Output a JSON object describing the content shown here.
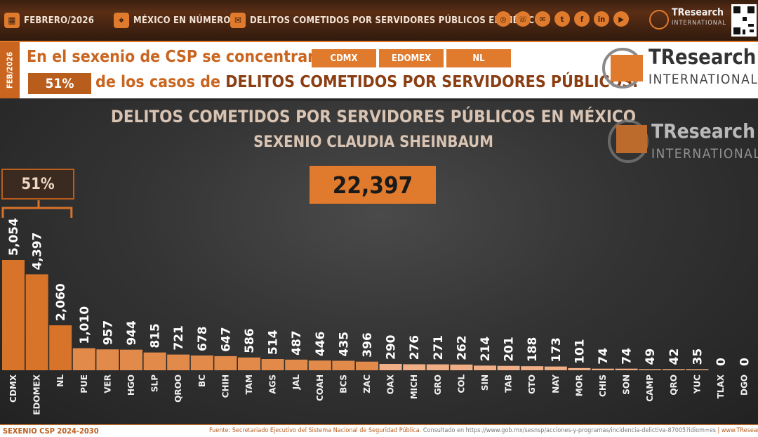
{
  "topbar": {
    "date": "FEBRERO/2026",
    "section": "MÉXICO EN NÚMEROS",
    "topic": "DELITOS COMETIDOS POR SERVIDORES PÚBLICOS EN MÉXICO",
    "social_icons": [
      "web-icon",
      "phone-icon",
      "email-icon",
      "twitter-icon",
      "facebook-icon",
      "linkedin-icon",
      "youtube-icon"
    ],
    "logo_word1": "TResearch",
    "logo_word2": "INTERNATIONAL"
  },
  "headline": {
    "side_date": "FEB/2026",
    "line1": "En el sexenio de CSP se concentran en",
    "chips": [
      "CDMX",
      "EDOMEX",
      "NL"
    ],
    "percent": "51%",
    "line2_pre": "de los casos de",
    "line2_emph": "DELITOS COMETIDOS POR SERVIDORES PÚBLICOS."
  },
  "brand": {
    "name_main": "TResearch",
    "name_sub": "INTERNATIONAL",
    "accent": "#e07a2c",
    "dark_accent": "#b85d1c"
  },
  "chart_data": {
    "type": "bar",
    "title": "DELITOS COMETIDOS POR SERVIDORES PÚBLICOS EN MÉXICO",
    "subtitle": "SEXENIO CLAUDIA SHEINBAUM",
    "total": "22,397",
    "group_label": "51%",
    "categories": [
      "CDMX",
      "EDOMEX",
      "NL",
      "PUE",
      "VER",
      "HGO",
      "SLP",
      "QROO",
      "BC",
      "CHIH",
      "TAM",
      "AGS",
      "JAL",
      "COAH",
      "BCS",
      "ZAC",
      "OAX",
      "MICH",
      "GRO",
      "COL",
      "SIN",
      "TAB",
      "GTO",
      "NAY",
      "MOR",
      "CHIS",
      "SON",
      "CAMP",
      "QRO",
      "YUC",
      "TLAX",
      "DGO"
    ],
    "values": [
      5054,
      4397,
      2060,
      1010,
      957,
      944,
      815,
      721,
      678,
      647,
      586,
      514,
      487,
      446,
      435,
      396,
      290,
      276,
      271,
      262,
      214,
      201,
      188,
      173,
      101,
      74,
      74,
      49,
      42,
      35,
      0,
      0
    ],
    "value_labels": [
      "5,054",
      "4,397",
      "2,060",
      "1,010",
      "957",
      "944",
      "815",
      "721",
      "678",
      "647",
      "586",
      "514",
      "487",
      "446",
      "435",
      "396",
      "290",
      "276",
      "271",
      "262",
      "214",
      "201",
      "188",
      "173",
      "101",
      "74",
      "74",
      "49",
      "42",
      "35",
      "0",
      "0"
    ],
    "xlabel": "",
    "ylabel": "",
    "grid": false,
    "legend": "none"
  },
  "footer": {
    "left": "SEXENIO CSP 2024-2030",
    "source_label": "Fuente: Secretariado Ejecutivo del Sistema Nacional de Seguridad Pública.",
    "source_url": "Consultado en https://www.gob.mx/sesnsp/acciones-y-programas/incidencia-delictiva-87005?idiom=es",
    "site": "| www.TResearch.Mx |"
  }
}
